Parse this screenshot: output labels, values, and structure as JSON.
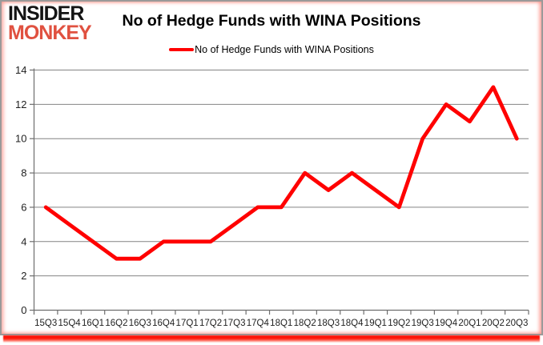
{
  "logo": {
    "line1": "INSIDER",
    "line2": "MONKEY",
    "color": "#e05140"
  },
  "title": "No of Hedge Funds with WINA Positions",
  "legend": {
    "label": "No of Hedge Funds with WINA Positions"
  },
  "colors": {
    "series_red": "#ff0000",
    "grid": "#848484",
    "axis": "#6e6e6e",
    "labels": "#1f1f1f",
    "frame_border": "#9a9a9a",
    "bottom_shadow": "#ff0800"
  },
  "chart_data": {
    "type": "line",
    "title": "No of Hedge Funds with WINA Positions",
    "categories": [
      "15Q3",
      "15Q4",
      "16Q1",
      "16Q2",
      "16Q3",
      "16Q4",
      "17Q1",
      "17Q2",
      "17Q3",
      "17Q4",
      "18Q1",
      "18Q2",
      "18Q3",
      "18Q4",
      "19Q1",
      "19Q2",
      "19Q3",
      "19Q4",
      "20Q1",
      "20Q2",
      "20Q3"
    ],
    "series": [
      {
        "name": "No of Hedge Funds with WINA Positions",
        "color": "#ff0000",
        "values": [
          6,
          5,
          4,
          3,
          3,
          4,
          4,
          4,
          5,
          6,
          6,
          8,
          7,
          8,
          7,
          6,
          10,
          12,
          11,
          13,
          10
        ]
      }
    ],
    "xlabel": "",
    "ylabel": "",
    "ylim": [
      0,
      14
    ],
    "ytick_step": 2,
    "grid": "horizontal-gridlines",
    "legend_position": "top-center",
    "grid_color": "#848484",
    "axis_color": "#6e6e6e",
    "label_color": "#1f1f1f"
  }
}
